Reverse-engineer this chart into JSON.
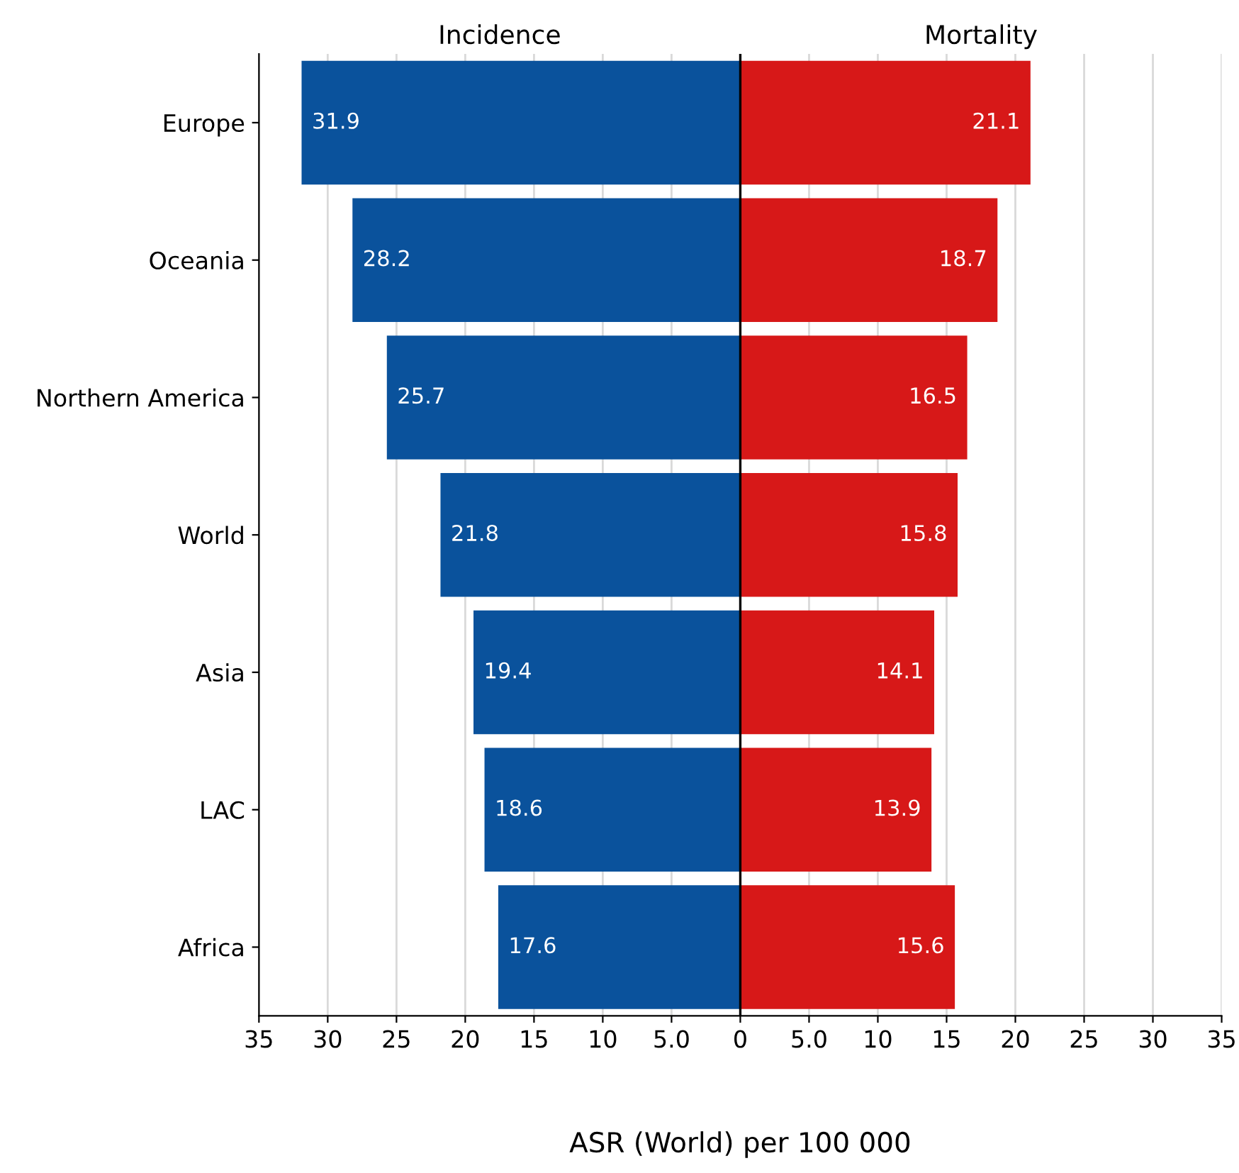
{
  "chart_data": {
    "type": "bar",
    "orientation": "horizontal",
    "xlabel": "ASR (World) per 100 000",
    "categories": [
      "Europe",
      "Oceania",
      "Northern America",
      "World",
      "Asia",
      "LAC",
      "Africa"
    ],
    "series": [
      {
        "name": "Incidence",
        "color": "#0a529c",
        "values": [
          31.9,
          28.2,
          25.7,
          21.8,
          19.4,
          18.6,
          17.6
        ],
        "base": [
          -31.9,
          -28.2,
          -25.7,
          -21.8,
          -19.4,
          -18.6,
          -17.6
        ]
      },
      {
        "name": "Mortality",
        "color": "#d71818",
        "values": [
          21.1,
          18.7,
          16.5,
          15.8,
          14.1,
          13.9,
          15.6
        ],
        "base": [
          0,
          0,
          0,
          0,
          0,
          0,
          0
        ]
      }
    ],
    "data_labels": true,
    "xlim": [
      -35,
      35
    ],
    "xticks": [
      {
        "value": -35,
        "label": "35"
      },
      {
        "value": -30,
        "label": "30"
      },
      {
        "value": -25,
        "label": "25"
      },
      {
        "value": -20,
        "label": "20"
      },
      {
        "value": -15,
        "label": "15"
      },
      {
        "value": -10,
        "label": "10"
      },
      {
        "value": -5,
        "label": "5.0"
      },
      0,
      {
        "value": 5,
        "label": "5.0"
      },
      10,
      15,
      20,
      25,
      30,
      35
    ],
    "ref_lines": [
      {
        "axis": "x",
        "value": 0,
        "color": "#000000"
      }
    ],
    "grid": "x",
    "legend": false
  }
}
